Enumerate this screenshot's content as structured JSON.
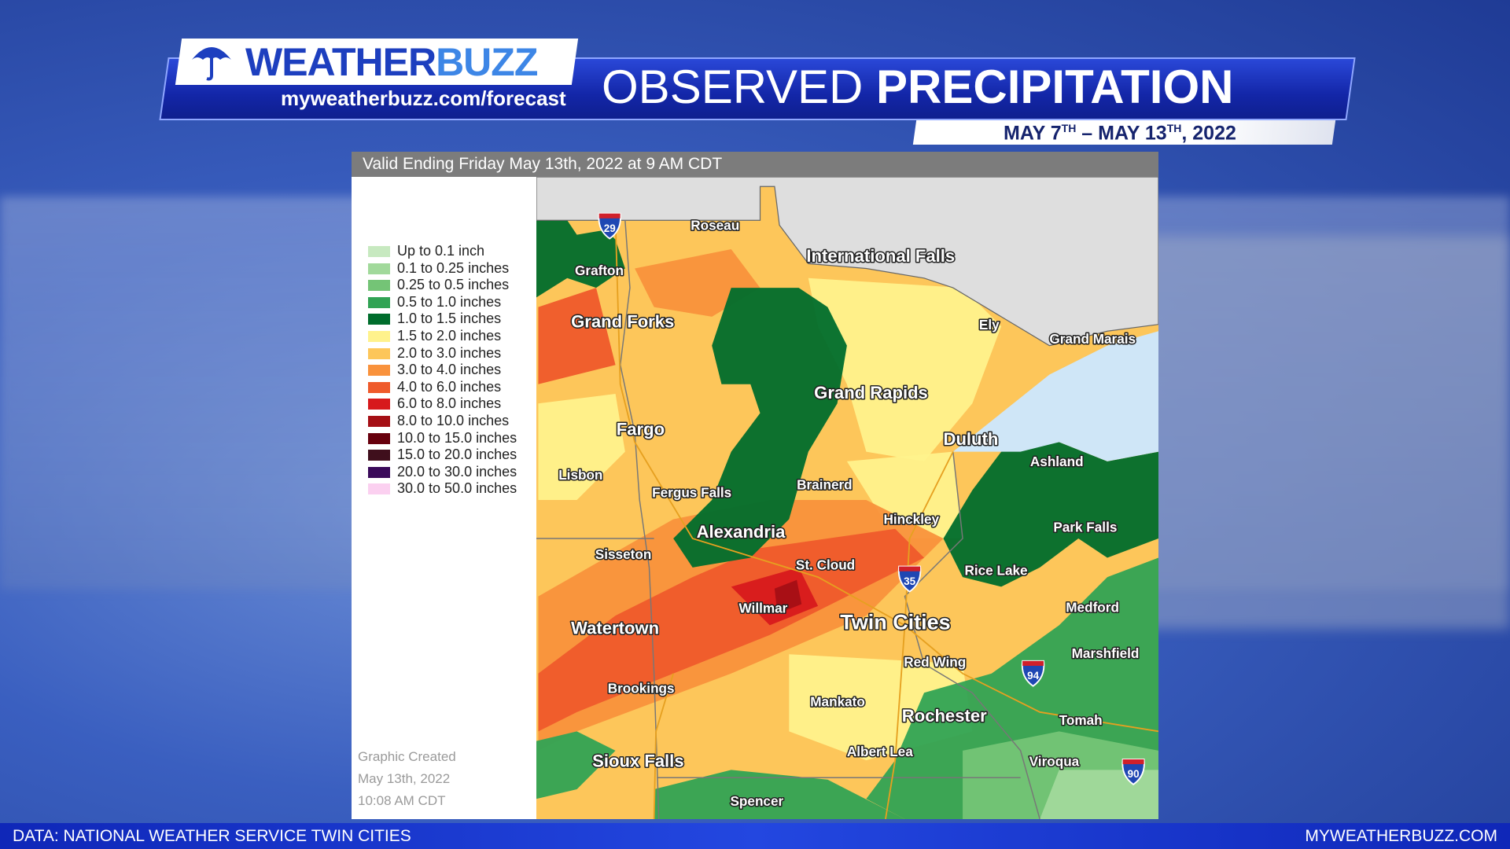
{
  "header": {
    "brand": {
      "first": "WEATHER",
      "second": "BUZZ"
    },
    "url": "myweatherbuzz.com/forecast",
    "title": {
      "light": "OBSERVED",
      "bold": "PRECIPITATION"
    },
    "dates": [
      "MAY 7",
      "TH",
      "– MAY 13",
      "TH",
      ", 2022"
    ]
  },
  "map": {
    "valid": "Valid Ending Friday May 13th, 2022 at 9 AM CDT",
    "legend": [
      {
        "label": "Up to 0.1 inch",
        "color": "#c7e9c0"
      },
      {
        "label": "0.1 to 0.25 inches",
        "color": "#a1d99b"
      },
      {
        "label": "0.25 to 0.5 inches",
        "color": "#74c476"
      },
      {
        "label": "0.5 to 1.0 inches",
        "color": "#31a354"
      },
      {
        "label": "1.0 to 1.5 inches",
        "color": "#006d2c"
      },
      {
        "label": "1.5 to 2.0 inches",
        "color": "#fff28c"
      },
      {
        "label": "2.0 to 3.0 inches",
        "color": "#fdc65a"
      },
      {
        "label": "3.0 to 4.0 inches",
        "color": "#f9923c"
      },
      {
        "label": "4.0 to 6.0 inches",
        "color": "#ef5a2b"
      },
      {
        "label": "6.0 to 8.0 inches",
        "color": "#d7191c"
      },
      {
        "label": "8.0 to 10.0 inches",
        "color": "#a50f15"
      },
      {
        "label": "10.0 to 15.0 inches",
        "color": "#67000d"
      },
      {
        "label": "15.0 to 20.0 inches",
        "color": "#3f0f1c"
      },
      {
        "label": "20.0 to 30.0 inches",
        "color": "#3a0a5a"
      },
      {
        "label": "30.0 to 50.0 inches",
        "color": "#fbd0f0"
      }
    ],
    "cities": [
      "Roseau",
      "Grafton",
      "International Falls",
      "Grand Forks",
      "Ely",
      "Grand Marais",
      "Grand Rapids",
      "Fargo",
      "Duluth",
      "Ashland",
      "Lisbon",
      "Brainerd",
      "Fergus Falls",
      "Hinckley",
      "Park Falls",
      "Alexandria",
      "Sisseton",
      "St. Cloud",
      "Rice Lake",
      "Medford",
      "Willmar",
      "Twin Cities",
      "Watertown",
      "Red Wing",
      "Marshfield",
      "Brookings",
      "Mankato",
      "Rochester",
      "Tomah",
      "Albert Lea",
      "Sioux Falls",
      "Viroqua",
      "Spencer"
    ],
    "interstates": [
      "29",
      "35",
      "94",
      "90"
    ],
    "created": [
      "Graphic Created",
      "May 13th, 2022",
      "10:08 AM CDT"
    ]
  },
  "footer": {
    "source": "DATA: NATIONAL WEATHER SERVICE TWIN CITIES",
    "site": "MYWEATHERBUZZ.COM"
  }
}
